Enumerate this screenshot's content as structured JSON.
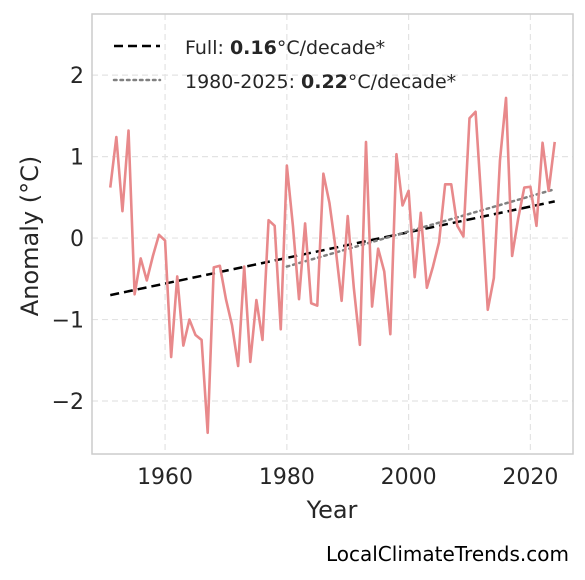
{
  "chart_data": {
    "type": "line",
    "xlabel": "Year",
    "ylabel": "Anomaly (°C)",
    "xlim": [
      1948,
      2027
    ],
    "ylim": [
      -2.65,
      2.75
    ],
    "xticks": [
      1960,
      1980,
      2000,
      2020
    ],
    "yticks": [
      2,
      1,
      0,
      -1,
      -2
    ],
    "ytick_labels": [
      "2",
      "1",
      "0",
      "−1",
      "−2"
    ],
    "grid": true,
    "legend_position": "top-left",
    "series": [
      {
        "role": "anomaly",
        "color": "#e8898b",
        "x": [
          1951,
          1952,
          1953,
          1954,
          1955,
          1956,
          1957,
          1958,
          1959,
          1960,
          1961,
          1962,
          1963,
          1964,
          1965,
          1966,
          1967,
          1968,
          1969,
          1970,
          1971,
          1972,
          1973,
          1974,
          1975,
          1976,
          1977,
          1978,
          1979,
          1980,
          1981,
          1982,
          1983,
          1984,
          1985,
          1986,
          1987,
          1988,
          1989,
          1990,
          1991,
          1992,
          1993,
          1994,
          1995,
          1996,
          1997,
          1998,
          1999,
          2000,
          2001,
          2002,
          2003,
          2004,
          2005,
          2006,
          2007,
          2008,
          2009,
          2010,
          2011,
          2012,
          2013,
          2014,
          2015,
          2016,
          2017,
          2018,
          2019,
          2020,
          2021,
          2022,
          2023,
          2024
        ],
        "y": [
          0.62,
          1.24,
          0.33,
          1.32,
          -0.69,
          -0.25,
          -0.52,
          -0.22,
          0.04,
          -0.03,
          -1.46,
          -0.47,
          -1.32,
          -1.0,
          -1.19,
          -1.25,
          -2.39,
          -0.36,
          -0.34,
          -0.75,
          -1.07,
          -1.57,
          -0.35,
          -1.52,
          -0.76,
          -1.25,
          0.22,
          0.15,
          -1.12,
          0.89,
          0.15,
          -0.75,
          0.18,
          -0.8,
          -0.83,
          0.79,
          0.43,
          -0.12,
          -0.77,
          0.27,
          -0.61,
          -1.31,
          1.18,
          -0.84,
          -0.13,
          -0.41,
          -1.18,
          1.03,
          0.4,
          0.58,
          -0.48,
          0.31,
          -0.61,
          -0.35,
          -0.05,
          0.66,
          0.66,
          0.15,
          0.02,
          1.47,
          1.55,
          0.4,
          -0.88,
          -0.49,
          0.95,
          1.72,
          -0.22,
          0.24,
          0.62,
          0.63,
          0.15,
          1.17,
          0.58,
          1.18
        ]
      },
      {
        "role": "trend-full",
        "name": "Full: 0.16°C/decade*",
        "color": "#000000",
        "x": [
          1951,
          2024
        ],
        "y": [
          -0.7,
          0.45
        ]
      },
      {
        "role": "trend-recent",
        "name": "1980-2025: 0.22°C/decade*",
        "color": "#808080",
        "x": [
          1980,
          2024
        ],
        "y": [
          -0.35,
          0.6
        ]
      }
    ],
    "legend": [
      {
        "prefix": "Full: ",
        "value": "0.16",
        "suffix": "°C/decade*",
        "style": "dashed",
        "color": "#000000"
      },
      {
        "prefix": "1980-2025: ",
        "value": "0.22",
        "suffix": "°C/decade*",
        "style": "dotted",
        "color": "#808080"
      }
    ]
  },
  "watermark": "LocalClimateTrends.com"
}
